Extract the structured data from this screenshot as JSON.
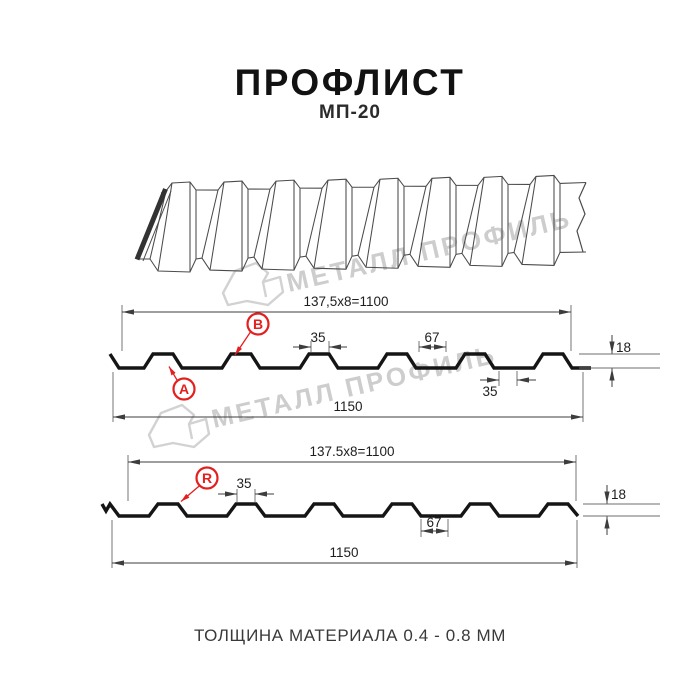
{
  "header": {
    "title": "ПРОФЛИСТ",
    "subtitle": "МП-20"
  },
  "watermark": {
    "brand": "МЕТАЛЛ ПРОФИЛЬ"
  },
  "footer": {
    "note": "ТОЛЩИНА МАТЕРИАЛА 0.4 - 0.8 ММ"
  },
  "colors": {
    "accent_red": "#e41f1f",
    "line_dark": "#151515",
    "dim_line": "#3d3d3d",
    "watermark_gray": "#cdcdcd"
  },
  "profile_top": {
    "coverage_width": "137,5x8=1100",
    "overall_width": "1150",
    "crest_width": "35",
    "valley_width": "67",
    "rib_base_width": "35",
    "profile_height": "18",
    "point_label_a": "A",
    "point_label_b": "B"
  },
  "profile_bottom": {
    "coverage_width": "137.5x8=1100",
    "overall_width": "1150",
    "crest_width": "35",
    "valley_width": "67",
    "profile_height": "18",
    "point_label_r": "R"
  }
}
